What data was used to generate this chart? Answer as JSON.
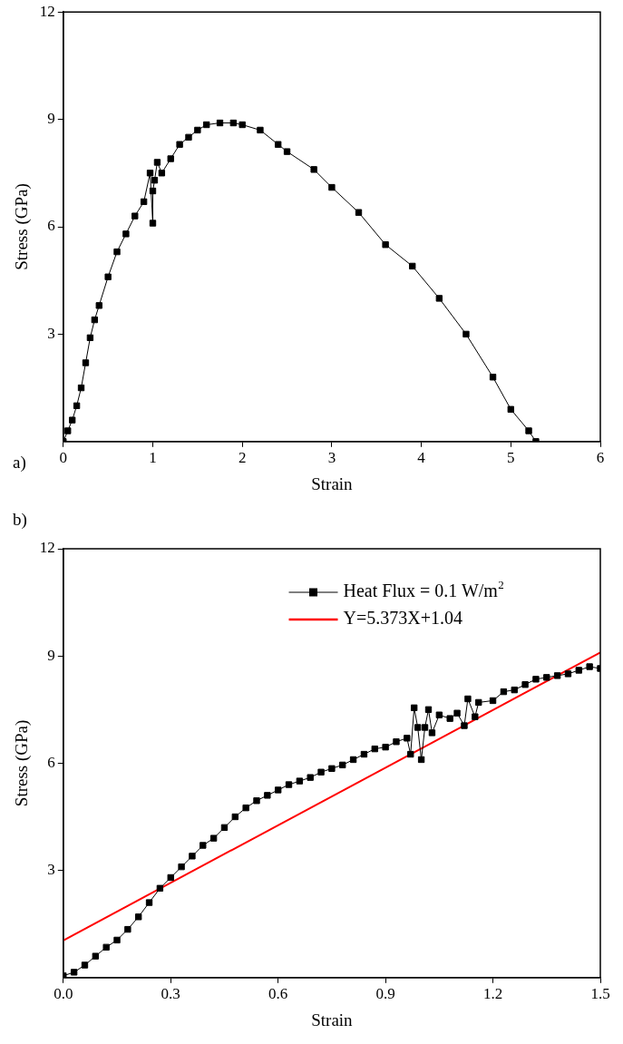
{
  "chart_data": [
    {
      "type": "line",
      "xlabel": "Strain",
      "ylabel": "Stress (GPa)",
      "annotations": [
        "a)"
      ],
      "xlim": [
        0,
        6
      ],
      "xticks": [
        0,
        1,
        2,
        3,
        4,
        5,
        6
      ],
      "ylim": [
        0,
        12
      ],
      "yticks": [
        3,
        6,
        9,
        12
      ],
      "grid": false,
      "legend": false,
      "marker": "square",
      "line_style": "solid",
      "series": [
        {
          "color": "#000000",
          "x": [
            0,
            0.05,
            0.1,
            0.15,
            0.2,
            0.25,
            0.3,
            0.35,
            0.4,
            0.5,
            0.6,
            0.7,
            0.8,
            0.9,
            0.97,
            1.0,
            1.0,
            1.02,
            1.05,
            1.1,
            1.2,
            1.3,
            1.4,
            1.5,
            1.6,
            1.75,
            1.9,
            2.0,
            2.2,
            2.4,
            2.5,
            2.8,
            3.0,
            3.3,
            3.6,
            3.9,
            4.2,
            4.5,
            4.8,
            5.0,
            5.2,
            5.28
          ],
          "values": [
            0,
            0.3,
            0.6,
            1.0,
            1.5,
            2.2,
            2.9,
            3.4,
            3.8,
            4.6,
            5.3,
            5.8,
            6.3,
            6.7,
            7.5,
            6.1,
            7.0,
            7.3,
            7.8,
            7.5,
            7.9,
            8.3,
            8.5,
            8.7,
            8.85,
            8.9,
            8.9,
            8.85,
            8.7,
            8.3,
            8.1,
            7.6,
            7.1,
            6.4,
            5.5,
            4.9,
            4.0,
            3.0,
            1.8,
            0.9,
            0.3,
            0
          ]
        }
      ]
    },
    {
      "type": "line",
      "xlabel": "Strain",
      "ylabel": "Stress (GPa)",
      "annotations": [
        "b)"
      ],
      "xlim": [
        0,
        1.5
      ],
      "xticks": [
        {
          "value": 0,
          "label": "0.0"
        },
        0.3,
        0.6,
        0.9,
        1.2,
        1.5
      ],
      "ylim": [
        0,
        12
      ],
      "yticks": [
        3,
        6,
        9,
        12
      ],
      "grid": false,
      "legend": "top right",
      "marker": "square",
      "line_style": "solid",
      "series": [
        {
          "name": "Heat Flux = 0.1 W/m$^{2}$",
          "color": "#000000",
          "x": [
            0,
            0.03,
            0.06,
            0.09,
            0.12,
            0.15,
            0.18,
            0.21,
            0.24,
            0.27,
            0.3,
            0.33,
            0.36,
            0.39,
            0.42,
            0.45,
            0.48,
            0.51,
            0.54,
            0.57,
            0.6,
            0.63,
            0.66,
            0.69,
            0.72,
            0.75,
            0.78,
            0.81,
            0.84,
            0.87,
            0.9,
            0.93,
            0.96,
            0.97,
            0.98,
            0.99,
            1.0,
            1.01,
            1.02,
            1.03,
            1.05,
            1.08,
            1.1,
            1.12,
            1.13,
            1.15,
            1.16,
            1.2,
            1.23,
            1.26,
            1.29,
            1.32,
            1.35,
            1.38,
            1.41,
            1.44,
            1.47,
            1.5
          ],
          "values": [
            0.05,
            0.15,
            0.35,
            0.6,
            0.85,
            1.05,
            1.35,
            1.7,
            2.1,
            2.5,
            2.8,
            3.1,
            3.4,
            3.7,
            3.9,
            4.2,
            4.5,
            4.75,
            4.95,
            5.1,
            5.25,
            5.4,
            5.5,
            5.6,
            5.75,
            5.85,
            5.95,
            6.1,
            6.25,
            6.4,
            6.45,
            6.6,
            6.7,
            6.25,
            7.55,
            7.0,
            6.1,
            7.0,
            7.5,
            6.85,
            7.35,
            7.25,
            7.4,
            7.05,
            7.8,
            7.3,
            7.7,
            7.75,
            8.0,
            8.05,
            8.2,
            8.35,
            8.4,
            8.45,
            8.5,
            8.6,
            8.7,
            8.65
          ]
        },
        {
          "name": "Y=5.373X+1.04",
          "type": "line",
          "marker": "none",
          "color": "#ff0000",
          "x": [
            0,
            1.5
          ],
          "values": [
            1.04,
            9.1
          ]
        }
      ]
    }
  ]
}
